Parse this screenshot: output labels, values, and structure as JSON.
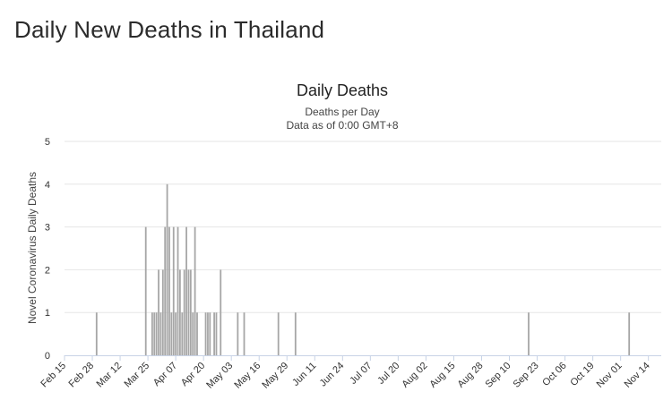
{
  "page": {
    "title": "Daily New Deaths in Thailand"
  },
  "chart_data": {
    "type": "bar",
    "title": "Daily Deaths",
    "subtitle": [
      "Deaths per Day",
      "Data as of 0:00 GMT+8"
    ],
    "ylabel": "Novel Coronavirus Daily Deaths",
    "xlabel": "",
    "ylim": [
      0,
      5
    ],
    "yticks": [
      0,
      1,
      2,
      3,
      4,
      5
    ],
    "x_range": [
      "2020-02-15",
      "2020-11-20"
    ],
    "x_tick_labels": [
      "Feb 15",
      "Feb 28",
      "Mar 12",
      "Mar 25",
      "Apr 07",
      "Apr 20",
      "May 03",
      "May 16",
      "May 29",
      "Jun 11",
      "Jun 24",
      "Jul 07",
      "Jul 20",
      "Aug 02",
      "Aug 15",
      "Aug 28",
      "Sep 10",
      "Sep 23",
      "Oct 06",
      "Oct 19",
      "Nov 01",
      "Nov 14"
    ],
    "bar_color": "#a6a6a6",
    "grid": true,
    "points": [
      {
        "date": "2020-03-01",
        "value": 1
      },
      {
        "date": "2020-03-24",
        "value": 3
      },
      {
        "date": "2020-03-27",
        "value": 1
      },
      {
        "date": "2020-03-28",
        "value": 1
      },
      {
        "date": "2020-03-29",
        "value": 1
      },
      {
        "date": "2020-03-30",
        "value": 2
      },
      {
        "date": "2020-03-31",
        "value": 1
      },
      {
        "date": "2020-04-01",
        "value": 2
      },
      {
        "date": "2020-04-02",
        "value": 3
      },
      {
        "date": "2020-04-03",
        "value": 4
      },
      {
        "date": "2020-04-04",
        "value": 3
      },
      {
        "date": "2020-04-05",
        "value": 1
      },
      {
        "date": "2020-04-06",
        "value": 3
      },
      {
        "date": "2020-04-07",
        "value": 1
      },
      {
        "date": "2020-04-08",
        "value": 3
      },
      {
        "date": "2020-04-09",
        "value": 2
      },
      {
        "date": "2020-04-10",
        "value": 1
      },
      {
        "date": "2020-04-11",
        "value": 2
      },
      {
        "date": "2020-04-12",
        "value": 3
      },
      {
        "date": "2020-04-13",
        "value": 2
      },
      {
        "date": "2020-04-14",
        "value": 2
      },
      {
        "date": "2020-04-15",
        "value": 1
      },
      {
        "date": "2020-04-16",
        "value": 3
      },
      {
        "date": "2020-04-17",
        "value": 1
      },
      {
        "date": "2020-04-21",
        "value": 1
      },
      {
        "date": "2020-04-22",
        "value": 1
      },
      {
        "date": "2020-04-23",
        "value": 1
      },
      {
        "date": "2020-04-25",
        "value": 1
      },
      {
        "date": "2020-04-26",
        "value": 1
      },
      {
        "date": "2020-04-28",
        "value": 2
      },
      {
        "date": "2020-05-06",
        "value": 1
      },
      {
        "date": "2020-05-09",
        "value": 1
      },
      {
        "date": "2020-05-25",
        "value": 1
      },
      {
        "date": "2020-06-02",
        "value": 1
      },
      {
        "date": "2020-09-19",
        "value": 1
      },
      {
        "date": "2020-11-05",
        "value": 1
      }
    ]
  }
}
